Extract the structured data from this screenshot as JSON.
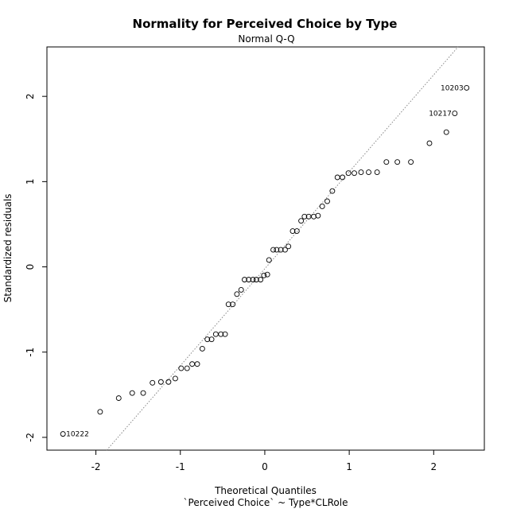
{
  "chart_data": {
    "type": "scatter",
    "title": "Normality for Perceived Choice by Type",
    "subtitle": "Normal Q-Q",
    "xlabel": "Theoretical Quantiles",
    "xlabel2": "`Perceived Choice` ~ Type*CLRole",
    "ylabel": "Standardized residuals",
    "xlim": [
      -2.58,
      2.6
    ],
    "ylim": [
      -2.15,
      2.58
    ],
    "x_ticks": [
      -2,
      -1,
      0,
      1,
      2
    ],
    "x_tick_labels": [
      "-2",
      "-1",
      "0",
      "1",
      "2"
    ],
    "y_ticks": [
      -2,
      -1,
      0,
      1,
      2
    ],
    "y_tick_labels": [
      "-2",
      "-1",
      "0",
      "1",
      "2"
    ],
    "grid": false,
    "reference_line": {
      "style": "dotted",
      "color": "#888888",
      "slope": 1.137,
      "intercept": -0.022
    },
    "points": [
      {
        "x": -2.39,
        "y": -1.96,
        "label": "10222"
      },
      {
        "x": -1.95,
        "y": -1.7
      },
      {
        "x": -1.73,
        "y": -1.54
      },
      {
        "x": -1.57,
        "y": -1.48
      },
      {
        "x": -1.44,
        "y": -1.48
      },
      {
        "x": -1.33,
        "y": -1.36
      },
      {
        "x": -1.23,
        "y": -1.35
      },
      {
        "x": -1.14,
        "y": -1.35
      },
      {
        "x": -1.06,
        "y": -1.31
      },
      {
        "x": -0.99,
        "y": -1.19
      },
      {
        "x": -0.92,
        "y": -1.19
      },
      {
        "x": -0.86,
        "y": -1.14
      },
      {
        "x": -0.8,
        "y": -1.14
      },
      {
        "x": -0.74,
        "y": -0.96
      },
      {
        "x": -0.68,
        "y": -0.85
      },
      {
        "x": -0.63,
        "y": -0.85
      },
      {
        "x": -0.58,
        "y": -0.79
      },
      {
        "x": -0.52,
        "y": -0.79
      },
      {
        "x": -0.47,
        "y": -0.79
      },
      {
        "x": -0.43,
        "y": -0.44
      },
      {
        "x": -0.38,
        "y": -0.44
      },
      {
        "x": -0.33,
        "y": -0.32
      },
      {
        "x": -0.28,
        "y": -0.27
      },
      {
        "x": -0.24,
        "y": -0.15
      },
      {
        "x": -0.19,
        "y": -0.15
      },
      {
        "x": -0.14,
        "y": -0.15
      },
      {
        "x": -0.1,
        "y": -0.15
      },
      {
        "x": -0.05,
        "y": -0.15
      },
      {
        "x": -0.01,
        "y": -0.1
      },
      {
        "x": 0.03,
        "y": -0.09
      },
      {
        "x": 0.05,
        "y": 0.08
      },
      {
        "x": 0.1,
        "y": 0.2
      },
      {
        "x": 0.14,
        "y": 0.2
      },
      {
        "x": 0.19,
        "y": 0.2
      },
      {
        "x": 0.24,
        "y": 0.2
      },
      {
        "x": 0.28,
        "y": 0.24
      },
      {
        "x": 0.33,
        "y": 0.42
      },
      {
        "x": 0.38,
        "y": 0.42
      },
      {
        "x": 0.43,
        "y": 0.54
      },
      {
        "x": 0.47,
        "y": 0.59
      },
      {
        "x": 0.52,
        "y": 0.59
      },
      {
        "x": 0.58,
        "y": 0.59
      },
      {
        "x": 0.63,
        "y": 0.6
      },
      {
        "x": 0.68,
        "y": 0.71
      },
      {
        "x": 0.74,
        "y": 0.77
      },
      {
        "x": 0.8,
        "y": 0.89
      },
      {
        "x": 0.86,
        "y": 1.05
      },
      {
        "x": 0.92,
        "y": 1.05
      },
      {
        "x": 0.99,
        "y": 1.1
      },
      {
        "x": 1.06,
        "y": 1.1
      },
      {
        "x": 1.14,
        "y": 1.11
      },
      {
        "x": 1.23,
        "y": 1.11
      },
      {
        "x": 1.33,
        "y": 1.11
      },
      {
        "x": 1.44,
        "y": 1.23
      },
      {
        "x": 1.57,
        "y": 1.23
      },
      {
        "x": 1.73,
        "y": 1.23
      },
      {
        "x": 1.95,
        "y": 1.45
      },
      {
        "x": 2.15,
        "y": 1.58
      },
      {
        "x": 2.25,
        "y": 1.8,
        "label": "10217"
      },
      {
        "x": 2.39,
        "y": 2.1,
        "label": "10203"
      }
    ]
  }
}
